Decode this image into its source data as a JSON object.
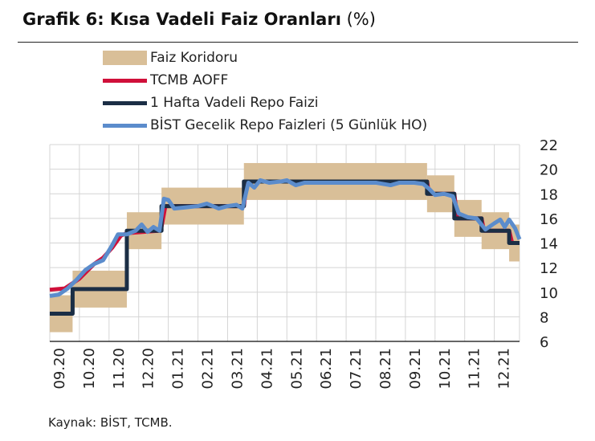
{
  "title_bold": "Grafik 6: Kısa Vadeli Faiz Oranları",
  "title_unit": "(%)",
  "source": "Kaynak: BİST, TCMB.",
  "chart_data": {
    "type": "line",
    "title": "Grafik 6: Kısa Vadeli Faiz Oranları (%)",
    "x_unit": "months since 09.2020",
    "xlim": [
      0,
      15.85
    ],
    "ylim": [
      6,
      22
    ],
    "yticks": [
      6,
      8,
      10,
      12,
      14,
      16,
      18,
      20,
      22
    ],
    "xtick_labels": [
      "09.20",
      "10.20",
      "11.20",
      "12.20",
      "01.21",
      "02.21",
      "03.21",
      "04.21",
      "05.21",
      "06.21",
      "07.21",
      "08.21",
      "09.21",
      "10.21",
      "11.21",
      "12.21"
    ],
    "grid": true,
    "legend_position": "top",
    "colors": {
      "corridor": "#d9bf98",
      "aoff": "#d0103a",
      "repo": "#1b2e45",
      "bist": "#5b8ccc"
    },
    "series": [
      {
        "name": "Faiz Koridoru",
        "kind": "band",
        "steps": [
          [
            0,
            0.77,
            6.75,
            9.75
          ],
          [
            0.77,
            2.6,
            8.75,
            11.75
          ],
          [
            2.6,
            3.77,
            13.5,
            16.5
          ],
          [
            3.77,
            6.55,
            15.5,
            18.5
          ],
          [
            6.55,
            12.73,
            17.5,
            20.5
          ],
          [
            12.73,
            13.65,
            16.5,
            19.5
          ],
          [
            13.65,
            14.57,
            14.5,
            17.5
          ],
          [
            14.57,
            15.5,
            13.5,
            16.5
          ],
          [
            15.5,
            15.85,
            12.5,
            15.5
          ]
        ]
      },
      {
        "name": "TCMB AOFF",
        "kind": "line",
        "points": [
          [
            0,
            10.2
          ],
          [
            0.5,
            10.3
          ],
          [
            1,
            11.1
          ],
          [
            1.5,
            12.3
          ],
          [
            1.8,
            12.8
          ],
          [
            2.1,
            13.6
          ],
          [
            2.4,
            14.6
          ],
          [
            2.6,
            14.8
          ],
          [
            3.7,
            15
          ],
          [
            3.77,
            15.3
          ],
          [
            3.9,
            17
          ],
          [
            6.55,
            17
          ],
          [
            6.65,
            19
          ],
          [
            12.73,
            19
          ],
          [
            12.8,
            18
          ],
          [
            13.65,
            18
          ],
          [
            13.75,
            16
          ],
          [
            14.57,
            16
          ],
          [
            14.65,
            15
          ],
          [
            15.5,
            15
          ],
          [
            15.6,
            14
          ],
          [
            15.85,
            14
          ]
        ]
      },
      {
        "name": "1 Hafta Vadeli Repo Faizi",
        "kind": "step",
        "points": [
          [
            0,
            8.25
          ],
          [
            0.77,
            8.25
          ],
          [
            0.77,
            10.25
          ],
          [
            2.6,
            10.25
          ],
          [
            2.6,
            15
          ],
          [
            3.77,
            15
          ],
          [
            3.77,
            17
          ],
          [
            6.55,
            17
          ],
          [
            6.55,
            19
          ],
          [
            12.73,
            19
          ],
          [
            12.73,
            18
          ],
          [
            13.65,
            18
          ],
          [
            13.65,
            16
          ],
          [
            14.57,
            16
          ],
          [
            14.57,
            15
          ],
          [
            15.5,
            15
          ],
          [
            15.5,
            14
          ],
          [
            15.85,
            14
          ]
        ]
      },
      {
        "name": "BİST Gecelik Repo Faizleri (5 Günlük HO)",
        "kind": "line",
        "points": [
          [
            0,
            9.7
          ],
          [
            0.3,
            9.8
          ],
          [
            0.6,
            10.3
          ],
          [
            0.9,
            11
          ],
          [
            1.2,
            11.8
          ],
          [
            1.5,
            12.3
          ],
          [
            1.8,
            12.6
          ],
          [
            2.1,
            13.8
          ],
          [
            2.3,
            14.7
          ],
          [
            2.6,
            14.7
          ],
          [
            2.9,
            15
          ],
          [
            3.1,
            15.5
          ],
          [
            3.3,
            14.9
          ],
          [
            3.5,
            15.3
          ],
          [
            3.7,
            15
          ],
          [
            3.85,
            17.6
          ],
          [
            4.0,
            17.5
          ],
          [
            4.2,
            16.8
          ],
          [
            4.6,
            16.9
          ],
          [
            5.0,
            17
          ],
          [
            5.3,
            17.2
          ],
          [
            5.7,
            16.8
          ],
          [
            6.0,
            17
          ],
          [
            6.3,
            17.1
          ],
          [
            6.5,
            16.8
          ],
          [
            6.7,
            18.9
          ],
          [
            6.9,
            18.5
          ],
          [
            7.1,
            19.1
          ],
          [
            7.4,
            18.9
          ],
          [
            7.8,
            19
          ],
          [
            8.0,
            19.1
          ],
          [
            8.3,
            18.7
          ],
          [
            8.6,
            18.9
          ],
          [
            9,
            18.9
          ],
          [
            10,
            18.9
          ],
          [
            11,
            18.9
          ],
          [
            11.5,
            18.7
          ],
          [
            11.8,
            18.9
          ],
          [
            12.3,
            18.9
          ],
          [
            12.6,
            18.8
          ],
          [
            12.8,
            18.4
          ],
          [
            13.0,
            17.9
          ],
          [
            13.3,
            18
          ],
          [
            13.6,
            17.8
          ],
          [
            13.8,
            16.4
          ],
          [
            14.1,
            16.1
          ],
          [
            14.4,
            16
          ],
          [
            14.7,
            15.1
          ],
          [
            15.0,
            15.6
          ],
          [
            15.2,
            15.9
          ],
          [
            15.35,
            15.3
          ],
          [
            15.5,
            15.9
          ],
          [
            15.7,
            15.2
          ],
          [
            15.85,
            14.3
          ]
        ]
      }
    ]
  }
}
